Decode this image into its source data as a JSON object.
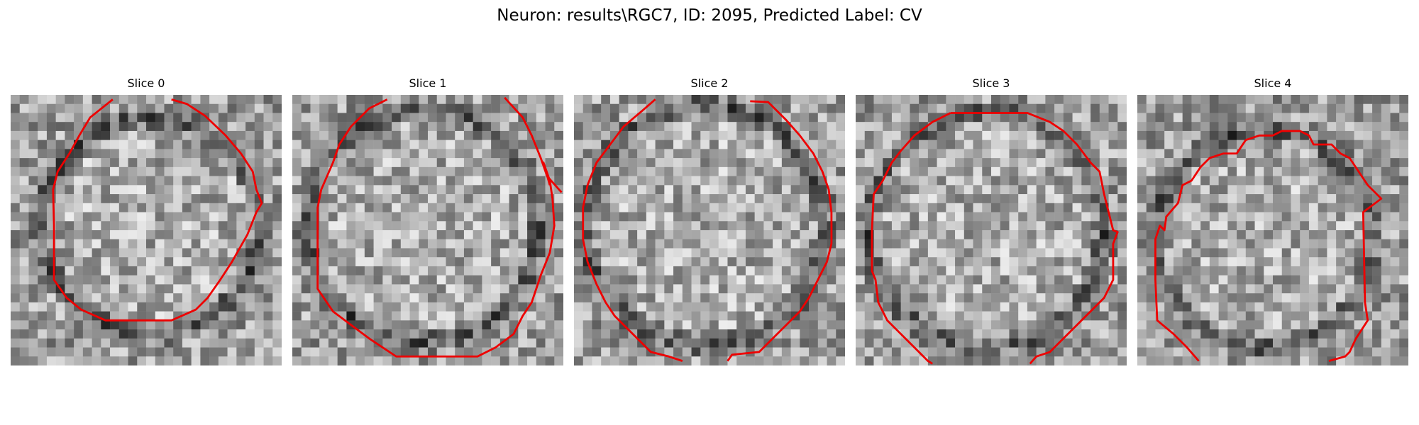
{
  "figure": {
    "title": "Neuron: results\\RGC7, ID: 2095, Predicted Label: CV"
  },
  "panels": [
    {
      "title": "Slice 0"
    },
    {
      "title": "Slice 1"
    },
    {
      "title": "Slice 2"
    },
    {
      "title": "Slice 3"
    },
    {
      "title": "Slice 4"
    }
  ],
  "colors": {
    "contour": "#ee0000",
    "colormap": "grayscale"
  }
}
